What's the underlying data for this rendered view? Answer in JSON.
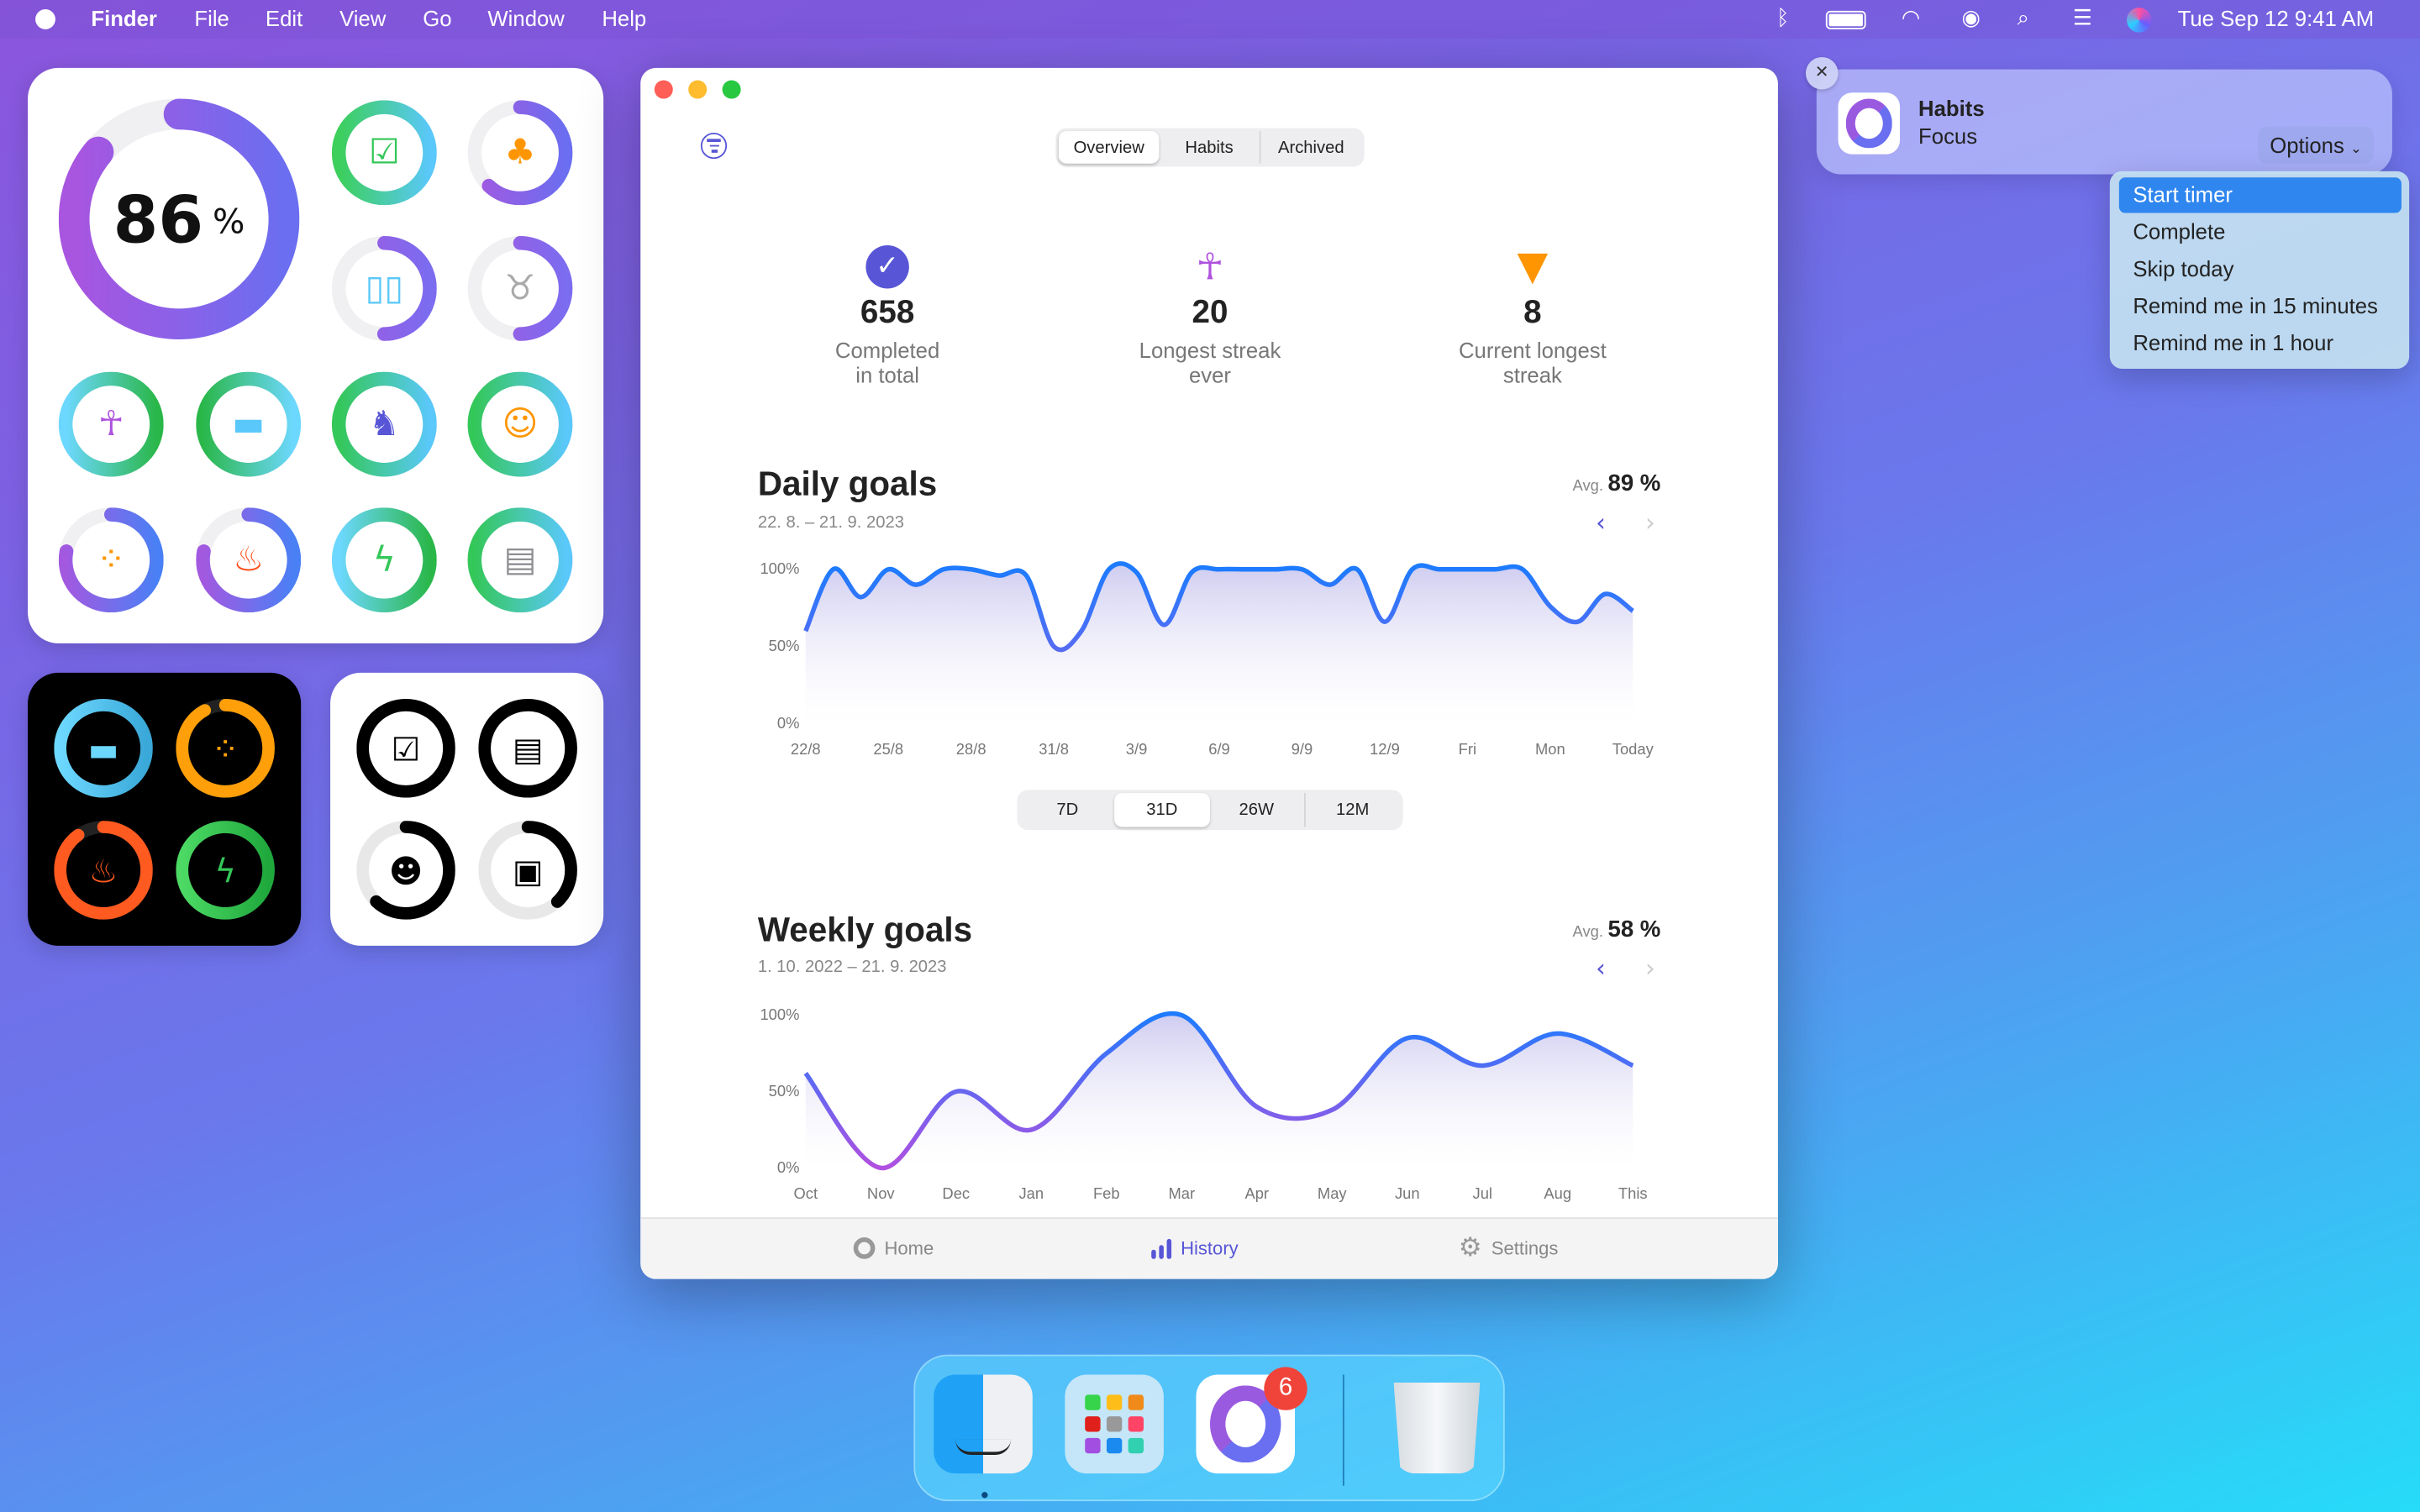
{
  "menubar": {
    "app": "Finder",
    "items": [
      "File",
      "Edit",
      "View",
      "Go",
      "Window",
      "Help"
    ],
    "clock": "Tue Sep 12  9:41 AM",
    "status_icons": [
      "bluetooth-icon",
      "battery-icon",
      "wifi-icon",
      "user-icon",
      "search-icon",
      "control-center-icon",
      "siri-icon"
    ]
  },
  "widgets": {
    "large": {
      "overall_value": "86",
      "overall_unit": "%",
      "overall_progress": 0.86,
      "rings": [
        {
          "icon": "clipboard-check",
          "glyph": "☑",
          "progress": 1.0,
          "colors": [
            "#3ccf5b",
            "#5ac8fa"
          ],
          "icon_color": "#34c759"
        },
        {
          "icon": "carrot",
          "glyph": "♣",
          "progress": 0.62,
          "colors": [
            "#a259e0",
            "#6b6ef0"
          ],
          "icon_color": "#ff9500"
        },
        {
          "icon": "book",
          "glyph": "▯▯",
          "progress": 0.5,
          "colors": [
            "#a259e0",
            "#7b6cf0"
          ],
          "icon_color": "#5ac8fa"
        },
        {
          "icon": "tooth",
          "glyph": "♉",
          "progress": 0.5,
          "colors": [
            "#a259e0",
            "#7b6cf0"
          ],
          "icon_color": "#aaaaaa"
        },
        {
          "icon": "meditation",
          "glyph": "☥",
          "progress": 1.0,
          "colors": [
            "#6dd8ff",
            "#2ab74a"
          ],
          "icon_color": "#af52de"
        },
        {
          "icon": "bed",
          "glyph": "▬",
          "progress": 1.0,
          "colors": [
            "#2ab74a",
            "#6dd8ff"
          ],
          "icon_color": "#5ac8fa"
        },
        {
          "icon": "walking",
          "glyph": "♞",
          "progress": 1.0,
          "colors": [
            "#34c759",
            "#5ac8fa"
          ],
          "icon_color": "#5856d6"
        },
        {
          "icon": "smile",
          "glyph": "☺",
          "progress": 1.0,
          "colors": [
            "#34c759",
            "#5ac8fa"
          ],
          "icon_color": "#ff9500"
        },
        {
          "icon": "footprints",
          "glyph": "⁘",
          "progress": 0.78,
          "colors": [
            "#a259e0",
            "#4a80f5"
          ],
          "icon_color": "#ff9500"
        },
        {
          "icon": "flame",
          "glyph": "♨",
          "progress": 0.78,
          "colors": [
            "#a259e0",
            "#4a80f5"
          ],
          "icon_color": "#ff4f1a"
        },
        {
          "icon": "exercise",
          "glyph": "ϟ",
          "progress": 1.0,
          "colors": [
            "#6dd8ff",
            "#2ab74a"
          ],
          "icon_color": "#34c759"
        },
        {
          "icon": "newspaper",
          "glyph": "▤",
          "progress": 1.0,
          "colors": [
            "#34c759",
            "#5ac8fa"
          ],
          "icon_color": "#8e8e93"
        }
      ]
    },
    "dark": {
      "rings": [
        {
          "icon": "bed",
          "glyph": "▬",
          "progress": 1.0,
          "colors": [
            "#6dd8ff",
            "#3aa8d8"
          ],
          "icon_color": "#6dd8ff"
        },
        {
          "icon": "footprints",
          "glyph": "⁘",
          "progress": 0.92,
          "colors": [
            "#ff9f0a",
            "#ff9f0a"
          ],
          "icon_color": "#ff9f0a"
        },
        {
          "icon": "flame",
          "glyph": "♨",
          "progress": 0.9,
          "colors": [
            "#ff5a1f",
            "#ff5a1f"
          ],
          "icon_color": "#ff5a1f"
        },
        {
          "icon": "exercise",
          "glyph": "ϟ",
          "progress": 1.0,
          "colors": [
            "#4cd964",
            "#1fa83c"
          ],
          "icon_color": "#34c759"
        }
      ]
    },
    "mono": {
      "rings": [
        {
          "icon": "clipboard-check",
          "glyph": "☑",
          "progress": 1.0,
          "colors": [
            "#000000",
            "#000000"
          ],
          "icon_color": "#000000"
        },
        {
          "icon": "newspaper",
          "glyph": "▤",
          "progress": 1.0,
          "colors": [
            "#000000",
            "#000000"
          ],
          "icon_color": "#000000"
        },
        {
          "icon": "mind",
          "glyph": "☻",
          "progress": 0.62,
          "colors": [
            "#000000",
            "#000000"
          ],
          "icon_color": "#000000"
        },
        {
          "icon": "money",
          "glyph": "▣",
          "progress": 0.38,
          "colors": [
            "#000000",
            "#000000"
          ],
          "icon_color": "#000000"
        }
      ]
    }
  },
  "window": {
    "segments": [
      "Overview",
      "Habits",
      "Archived"
    ],
    "selected_segment": "Overview",
    "stats": [
      {
        "icon": "checkmark-seal-icon",
        "value": "658",
        "label_1": "Completed",
        "label_2": "in total",
        "color": "#5856d6"
      },
      {
        "icon": "meditation-icon",
        "value": "20",
        "label_1": "Longest streak",
        "label_2": "ever",
        "color": "#af52de"
      },
      {
        "icon": "carrot-icon",
        "value": "8",
        "label_1": "Current longest",
        "label_2": "streak",
        "color": "#ff9500"
      }
    ],
    "daily": {
      "title": "Daily goals",
      "range": "22. 8. – 21. 9. 2023",
      "avg_label": "Avg.",
      "avg_value": "89 %"
    },
    "range_options": [
      "7D",
      "31D",
      "26W",
      "12M"
    ],
    "selected_range": "31D",
    "weekly": {
      "title": "Weekly goals",
      "range": "1. 10. 2022 – 21. 9. 2023",
      "avg_label": "Avg.",
      "avg_value": "58 %"
    },
    "tabs": [
      {
        "label": "Home",
        "icon": "ring-icon"
      },
      {
        "label": "History",
        "icon": "bar-chart-icon"
      },
      {
        "label": "Settings",
        "icon": "gear-icon"
      }
    ],
    "selected_tab": "History",
    "accent": "#5856d6"
  },
  "chart_data": [
    {
      "type": "area",
      "title": "Daily goals",
      "ylim": [
        0,
        100
      ],
      "yticks": [
        "0%",
        "50%",
        "100%"
      ],
      "xticks": [
        "22/8",
        "25/8",
        "28/8",
        "31/8",
        "3/9",
        "6/9",
        "9/9",
        "12/9",
        "Fri",
        "Mon",
        "Today"
      ],
      "x": [
        "22/8",
        "23/8",
        "24/8",
        "25/8",
        "26/8",
        "27/8",
        "28/8",
        "29/8",
        "30/8",
        "31/8",
        "1/9",
        "2/9",
        "3/9",
        "4/9",
        "5/9",
        "6/9",
        "7/9",
        "8/9",
        "9/9",
        "10/9",
        "11/9",
        "12/9",
        "13/9",
        "14/9",
        "15/9",
        "16/9",
        "17/9",
        "18/9",
        "19/9",
        "20/9",
        "21/9"
      ],
      "values": [
        60,
        100,
        82,
        100,
        90,
        100,
        100,
        96,
        96,
        50,
        60,
        100,
        98,
        64,
        98,
        100,
        100,
        100,
        100,
        90,
        100,
        66,
        100,
        100,
        100,
        100,
        100,
        76,
        66,
        84,
        73
      ]
    },
    {
      "type": "area",
      "title": "Weekly goals",
      "ylim": [
        0,
        100
      ],
      "yticks": [
        "0%",
        "50%",
        "100%"
      ],
      "xticks": [
        "Oct",
        "Nov",
        "Dec",
        "Jan",
        "Feb",
        "Mar",
        "Apr",
        "May",
        "Jun",
        "Jul",
        "Aug",
        "This"
      ],
      "x": [
        "Oct",
        "Nov",
        "Dec",
        "Jan",
        "Feb",
        "Mar",
        "Apr",
        "May",
        "Jun",
        "Jul",
        "Aug",
        "This"
      ],
      "values": [
        62,
        0,
        50,
        25,
        75,
        100,
        40,
        38,
        85,
        67,
        88,
        67
      ]
    }
  ],
  "notification": {
    "app": "Habits",
    "body": "Focus",
    "options_label": "Options",
    "close_label": "✕",
    "menu": [
      "Start timer",
      "Complete",
      "Skip today",
      "Remind me in 15 minutes",
      "Remind me in 1 hour"
    ],
    "highlighted": "Start timer"
  },
  "dock": {
    "apps": [
      "Finder",
      "Launchpad",
      "Habits",
      "Trash"
    ],
    "badge": "6"
  }
}
